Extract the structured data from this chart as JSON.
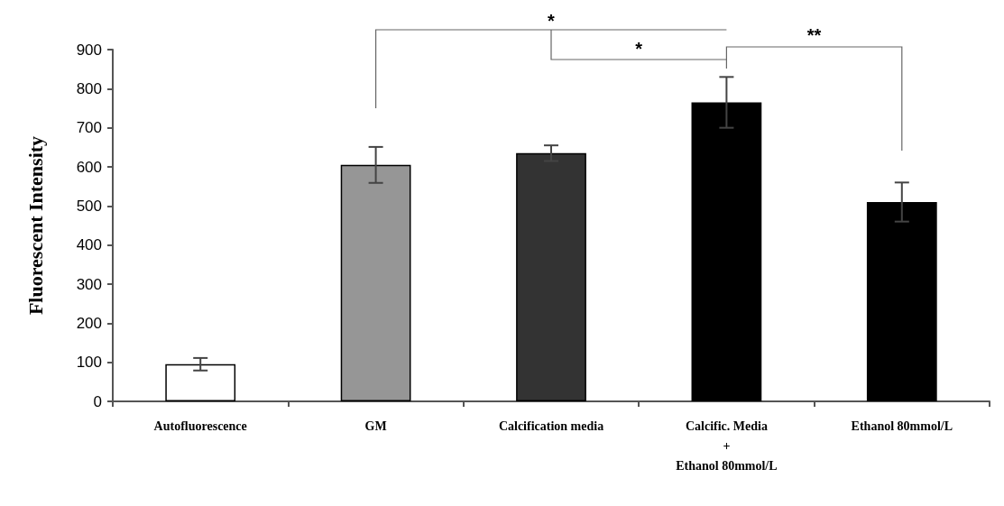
{
  "chart_data": {
    "type": "bar",
    "ylabel": "Fluorescent Intensity",
    "categories": [
      "Autofluorescence",
      "GM",
      "Calcification media",
      "Calcific. Media\n+\nEthanol 80mmol/L",
      "Ethanol 80mmol/L"
    ],
    "values": [
      95,
      605,
      635,
      765,
      510
    ],
    "errors": [
      16,
      46,
      20,
      65,
      50
    ],
    "colors": [
      "#ffffff",
      "#969696",
      "#333333",
      "#000000",
      "#000000"
    ],
    "ylim": [
      0,
      900
    ],
    "yticks": [
      0,
      100,
      200,
      300,
      400,
      500,
      600,
      700,
      800,
      900
    ],
    "grid": false,
    "annotations": [
      "*",
      "*",
      "**"
    ]
  }
}
